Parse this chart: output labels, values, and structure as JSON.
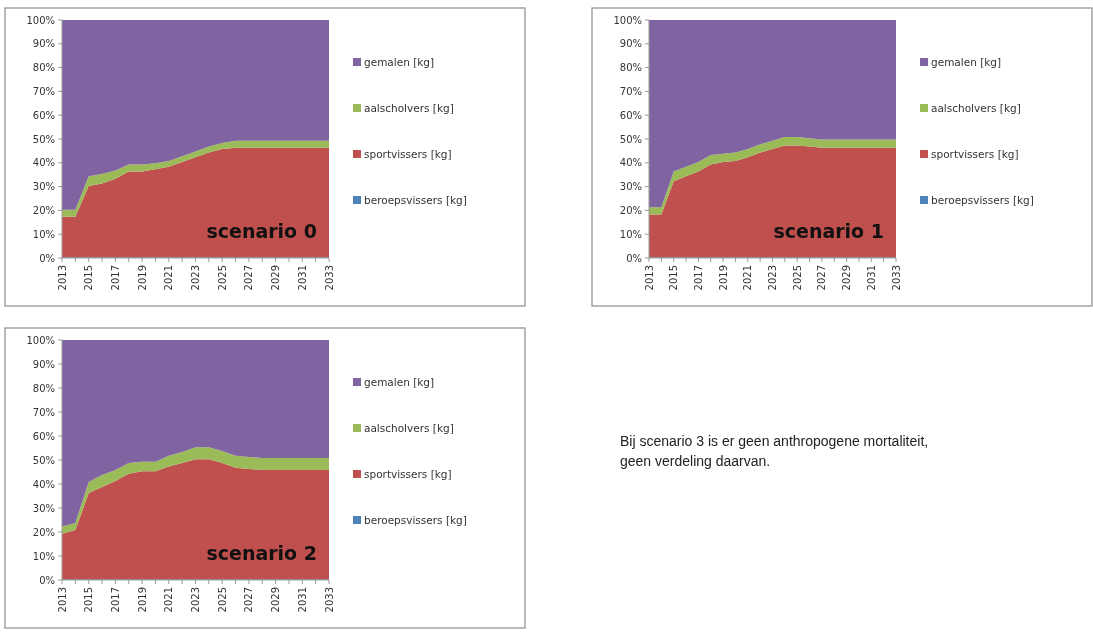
{
  "chart_data": [
    {
      "type": "area",
      "stacked": true,
      "legend": "right",
      "annotations": [
        "scenario 0"
      ],
      "x": [
        2013,
        2014,
        2015,
        2016,
        2017,
        2018,
        2019,
        2020,
        2021,
        2022,
        2023,
        2024,
        2025,
        2026,
        2027,
        2028,
        2029,
        2030,
        2031,
        2032,
        2033
      ],
      "xlim": [
        2013,
        2033
      ],
      "xticks": [
        2013,
        {
          "value": 2014,
          "label": null
        },
        2015,
        {
          "value": 2016,
          "label": null
        },
        2017,
        {
          "value": 2018,
          "label": null
        },
        2019,
        {
          "value": 2020,
          "label": null
        },
        2021,
        {
          "value": 2022,
          "label": null
        },
        2023,
        {
          "value": 2024,
          "label": null
        },
        2025,
        {
          "value": 2026,
          "label": null
        },
        2027,
        {
          "value": 2028,
          "label": null
        },
        2029,
        {
          "value": 2030,
          "label": null
        },
        2031,
        {
          "value": 2032,
          "label": null
        },
        2033
      ],
      "ylim": [
        0,
        100
      ],
      "yticks": [
        {
          "value": 0,
          "label": "0%"
        },
        {
          "value": 10,
          "label": "10%"
        },
        {
          "value": 20,
          "label": "20%"
        },
        {
          "value": 30,
          "label": "30%"
        },
        {
          "value": 40,
          "label": "40%"
        },
        {
          "value": 50,
          "label": "50%"
        },
        {
          "value": 60,
          "label": "60%"
        },
        {
          "value": 70,
          "label": "70%"
        },
        {
          "value": 80,
          "label": "80%"
        },
        {
          "value": 90,
          "label": "90%"
        },
        {
          "value": 100,
          "label": "100%"
        }
      ],
      "series": [
        {
          "name": "beroepsvissers [kg]",
          "color": "#4f81bd",
          "values": [
            0.3,
            0.3,
            0.3,
            0.3,
            0.3,
            0.3,
            0.3,
            0.3,
            0.3,
            0.3,
            0.3,
            0.3,
            0.3,
            0.3,
            0.3,
            0.3,
            0.3,
            0.3,
            0.3,
            0.3,
            0.3
          ]
        },
        {
          "name": "sportvissers [kg]",
          "color": "#c0504d",
          "values": [
            17,
            17,
            30,
            31,
            33,
            36,
            36,
            37,
            38,
            40,
            42,
            44,
            45.5,
            46,
            46,
            46,
            46,
            46,
            46,
            46,
            46
          ]
        },
        {
          "name": "aalscholvers [kg]",
          "color": "#9bbb59",
          "values": [
            3,
            3,
            4,
            4,
            3.5,
            3,
            3,
            2.5,
            2.5,
            2.5,
            2.5,
            2.5,
            2.5,
            3,
            3,
            3,
            3,
            3,
            3,
            3,
            3
          ]
        },
        {
          "name": "gemalen [kg]",
          "color": "#8064a2",
          "values": [
            79.7,
            79.7,
            65.7,
            64.7,
            63.2,
            60.7,
            60.7,
            60.2,
            59.2,
            57.2,
            55.2,
            53.2,
            51.7,
            50.7,
            50.7,
            50.7,
            50.7,
            50.7,
            50.7,
            50.7,
            50.7
          ]
        }
      ]
    },
    {
      "type": "area",
      "stacked": true,
      "legend": "right",
      "annotations": [
        "scenario 1"
      ],
      "x": [
        2013,
        2014,
        2015,
        2016,
        2017,
        2018,
        2019,
        2020,
        2021,
        2022,
        2023,
        2024,
        2025,
        2026,
        2027,
        2028,
        2029,
        2030,
        2031,
        2032,
        2033
      ],
      "xlim": [
        2013,
        2033
      ],
      "xticks": [
        2013,
        {
          "value": 2014,
          "label": null
        },
        2015,
        {
          "value": 2016,
          "label": null
        },
        2017,
        {
          "value": 2018,
          "label": null
        },
        2019,
        {
          "value": 2020,
          "label": null
        },
        2021,
        {
          "value": 2022,
          "label": null
        },
        2023,
        {
          "value": 2024,
          "label": null
        },
        2025,
        {
          "value": 2026,
          "label": null
        },
        2027,
        {
          "value": 2028,
          "label": null
        },
        2029,
        {
          "value": 2030,
          "label": null
        },
        2031,
        {
          "value": 2032,
          "label": null
        },
        2033
      ],
      "ylim": [
        0,
        100
      ],
      "yticks": [
        {
          "value": 0,
          "label": "0%"
        },
        {
          "value": 10,
          "label": "10%"
        },
        {
          "value": 20,
          "label": "20%"
        },
        {
          "value": 30,
          "label": "30%"
        },
        {
          "value": 40,
          "label": "40%"
        },
        {
          "value": 50,
          "label": "50%"
        },
        {
          "value": 60,
          "label": "60%"
        },
        {
          "value": 70,
          "label": "70%"
        },
        {
          "value": 80,
          "label": "80%"
        },
        {
          "value": 90,
          "label": "90%"
        },
        {
          "value": 100,
          "label": "100%"
        }
      ],
      "series": [
        {
          "name": "beroepsvissers [kg]",
          "color": "#4f81bd",
          "values": [
            0.3,
            0.3,
            0.3,
            0.3,
            0.3,
            0.3,
            0.3,
            0.3,
            0.3,
            0.3,
            0.3,
            0.3,
            0.3,
            0.3,
            0.3,
            0.3,
            0.3,
            0.3,
            0.3,
            0.3,
            0.3
          ]
        },
        {
          "name": "sportvissers [kg]",
          "color": "#c0504d",
          "values": [
            18,
            18,
            32,
            34,
            36,
            39,
            40,
            40.5,
            42,
            44,
            45.5,
            47,
            47,
            46.5,
            46,
            46,
            46,
            46,
            46,
            46,
            46
          ]
        },
        {
          "name": "aalscholvers [kg]",
          "color": "#9bbb59",
          "values": [
            3,
            3,
            4,
            4,
            4,
            4,
            3.5,
            3.5,
            3.5,
            3.5,
            3.5,
            3.5,
            3.5,
            3.5,
            3.5,
            3.5,
            3.5,
            3.5,
            3.5,
            3.5,
            3.5
          ]
        },
        {
          "name": "gemalen [kg]",
          "color": "#8064a2",
          "values": [
            78.7,
            78.7,
            63.7,
            61.7,
            59.7,
            56.7,
            56.2,
            55.7,
            54.2,
            52.2,
            50.7,
            49.2,
            49.2,
            49.7,
            50.2,
            50.2,
            50.2,
            50.2,
            50.2,
            50.2,
            50.2
          ]
        }
      ]
    },
    {
      "type": "area",
      "stacked": true,
      "legend": "right",
      "annotations": [
        "scenario 2"
      ],
      "x": [
        2013,
        2014,
        2015,
        2016,
        2017,
        2018,
        2019,
        2020,
        2021,
        2022,
        2023,
        2024,
        2025,
        2026,
        2027,
        2028,
        2029,
        2030,
        2031,
        2032,
        2033
      ],
      "xlim": [
        2013,
        2033
      ],
      "xticks": [
        2013,
        {
          "value": 2014,
          "label": null
        },
        2015,
        {
          "value": 2016,
          "label": null
        },
        2017,
        {
          "value": 2018,
          "label": null
        },
        2019,
        {
          "value": 2020,
          "label": null
        },
        2021,
        {
          "value": 2022,
          "label": null
        },
        2023,
        {
          "value": 2024,
          "label": null
        },
        2025,
        {
          "value": 2026,
          "label": null
        },
        2027,
        {
          "value": 2028,
          "label": null
        },
        2029,
        {
          "value": 2030,
          "label": null
        },
        2031,
        {
          "value": 2032,
          "label": null
        },
        2033
      ],
      "ylim": [
        0,
        100
      ],
      "yticks": [
        {
          "value": 0,
          "label": "0%"
        },
        {
          "value": 10,
          "label": "10%"
        },
        {
          "value": 20,
          "label": "20%"
        },
        {
          "value": 30,
          "label": "30%"
        },
        {
          "value": 40,
          "label": "40%"
        },
        {
          "value": 50,
          "label": "50%"
        },
        {
          "value": 60,
          "label": "60%"
        },
        {
          "value": 70,
          "label": "70%"
        },
        {
          "value": 80,
          "label": "80%"
        },
        {
          "value": 90,
          "label": "90%"
        },
        {
          "value": 100,
          "label": "100%"
        }
      ],
      "series": [
        {
          "name": "beroepsvissers [kg]",
          "color": "#4f81bd",
          "values": [
            0.3,
            0.3,
            0.3,
            0.3,
            0.3,
            0.3,
            0.3,
            0.3,
            0.3,
            0.3,
            0.3,
            0.3,
            0.3,
            0.3,
            0.3,
            0.3,
            0.3,
            0.3,
            0.3,
            0.3,
            0.3
          ]
        },
        {
          "name": "sportvissers [kg]",
          "color": "#c0504d",
          "values": [
            19,
            20.5,
            36,
            38.5,
            41,
            44,
            45,
            45,
            47,
            48.5,
            50,
            50,
            48.5,
            46.5,
            46,
            45.5,
            45.5,
            45.5,
            45.5,
            45.5,
            45.5
          ]
        },
        {
          "name": "aalscholvers [kg]",
          "color": "#9bbb59",
          "values": [
            3,
            3,
            4.5,
            5,
            4.5,
            4.5,
            4,
            4,
            4.5,
            4.5,
            5,
            5,
            5,
            5,
            5,
            5,
            5,
            5,
            5,
            5,
            5
          ]
        },
        {
          "name": "gemalen [kg]",
          "color": "#8064a2",
          "values": [
            77.7,
            76.2,
            59.2,
            56.2,
            54.2,
            51.2,
            50.7,
            50.7,
            48.2,
            46.7,
            44.7,
            44.7,
            46.2,
            48.2,
            48.7,
            49.2,
            49.2,
            49.2,
            49.2,
            49.2,
            49.2
          ]
        }
      ]
    },
    {
      "type": "other",
      "annotations": [
        "Bij scenario 3 is er geen anthropogene mortaliteit, geen verdeling daarvan."
      ]
    }
  ]
}
